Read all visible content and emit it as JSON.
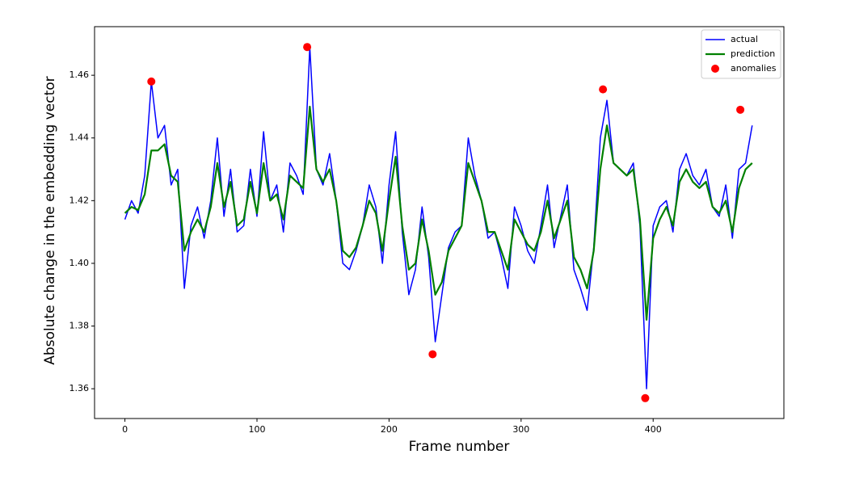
{
  "chart_data": {
    "type": "line",
    "xlabel": "Frame number",
    "ylabel": "Absolute change in the embedding vector",
    "x": [
      0,
      5,
      10,
      15,
      20,
      25,
      30,
      35,
      40,
      45,
      50,
      55,
      60,
      65,
      70,
      75,
      80,
      85,
      90,
      95,
      100,
      105,
      110,
      115,
      120,
      125,
      130,
      135,
      140,
      145,
      150,
      155,
      160,
      165,
      170,
      175,
      180,
      185,
      190,
      195,
      200,
      205,
      210,
      215,
      220,
      225,
      230,
      235,
      240,
      245,
      250,
      255,
      260,
      265,
      270,
      275,
      280,
      285,
      290,
      295,
      300,
      305,
      310,
      315,
      320,
      325,
      330,
      335,
      340,
      345,
      350,
      355,
      360,
      365,
      370,
      375,
      380,
      385,
      390,
      395,
      400,
      405,
      410,
      415,
      420,
      425,
      430,
      435,
      440,
      445,
      450,
      455,
      460,
      465,
      470,
      475
    ],
    "series": [
      {
        "name": "actual",
        "color": "#0000ff",
        "values": [
          1.414,
          1.42,
          1.416,
          1.428,
          1.458,
          1.44,
          1.444,
          1.425,
          1.43,
          1.392,
          1.412,
          1.418,
          1.408,
          1.42,
          1.44,
          1.415,
          1.43,
          1.41,
          1.412,
          1.43,
          1.415,
          1.442,
          1.42,
          1.425,
          1.41,
          1.432,
          1.428,
          1.422,
          1.469,
          1.43,
          1.425,
          1.435,
          1.42,
          1.4,
          1.398,
          1.404,
          1.412,
          1.425,
          1.418,
          1.4,
          1.425,
          1.442,
          1.41,
          1.39,
          1.398,
          1.418,
          1.402,
          1.375,
          1.39,
          1.405,
          1.41,
          1.412,
          1.44,
          1.428,
          1.42,
          1.408,
          1.41,
          1.402,
          1.392,
          1.418,
          1.412,
          1.404,
          1.4,
          1.412,
          1.425,
          1.405,
          1.415,
          1.425,
          1.398,
          1.392,
          1.385,
          1.405,
          1.44,
          1.452,
          1.432,
          1.43,
          1.428,
          1.432,
          1.412,
          1.36,
          1.412,
          1.418,
          1.42,
          1.41,
          1.43,
          1.435,
          1.428,
          1.425,
          1.43,
          1.418,
          1.415,
          1.425,
          1.408,
          1.43,
          1.432,
          1.444
        ]
      },
      {
        "name": "prediction",
        "color": "#008000",
        "values": [
          1.416,
          1.418,
          1.417,
          1.422,
          1.436,
          1.436,
          1.438,
          1.428,
          1.426,
          1.404,
          1.41,
          1.414,
          1.41,
          1.418,
          1.432,
          1.418,
          1.426,
          1.412,
          1.414,
          1.426,
          1.416,
          1.432,
          1.42,
          1.422,
          1.414,
          1.428,
          1.426,
          1.424,
          1.45,
          1.43,
          1.426,
          1.43,
          1.42,
          1.404,
          1.402,
          1.405,
          1.412,
          1.42,
          1.416,
          1.404,
          1.42,
          1.434,
          1.412,
          1.398,
          1.4,
          1.414,
          1.404,
          1.39,
          1.394,
          1.404,
          1.408,
          1.412,
          1.432,
          1.426,
          1.42,
          1.41,
          1.41,
          1.404,
          1.398,
          1.414,
          1.41,
          1.406,
          1.404,
          1.41,
          1.42,
          1.408,
          1.414,
          1.42,
          1.402,
          1.398,
          1.392,
          1.404,
          1.43,
          1.444,
          1.432,
          1.43,
          1.428,
          1.43,
          1.414,
          1.382,
          1.408,
          1.414,
          1.418,
          1.412,
          1.426,
          1.43,
          1.426,
          1.424,
          1.426,
          1.418,
          1.416,
          1.42,
          1.41,
          1.424,
          1.43,
          1.432
        ]
      },
      {
        "name": "anomalies",
        "type": "scatter",
        "color": "#ff0000",
        "x": [
          20,
          138,
          233,
          362,
          394,
          466
        ],
        "values": [
          1.458,
          1.469,
          1.371,
          1.4555,
          1.357,
          1.449
        ]
      }
    ],
    "xlim": [
      -23,
      499
    ],
    "ylim": [
      1.3505,
      1.4755
    ],
    "xticks": [
      0,
      100,
      200,
      300,
      400
    ],
    "yticks": [
      1.36,
      1.38,
      {
        "value": 1.4,
        "label": "1.40"
      },
      1.42,
      1.44,
      1.46
    ],
    "legend": "upper right"
  }
}
